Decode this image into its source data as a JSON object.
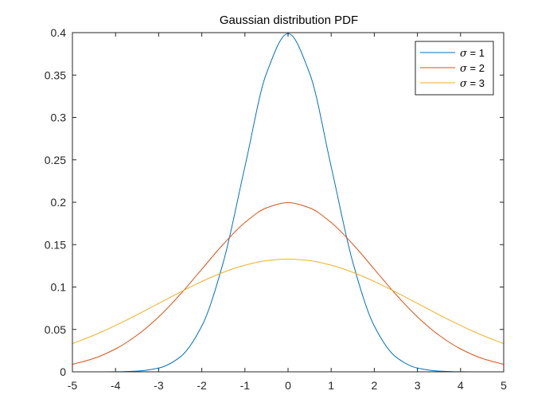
{
  "chart_data": {
    "type": "line",
    "title": "Gaussian distribution PDF",
    "xlabel": "",
    "ylabel": "",
    "xlim": [
      -5,
      5
    ],
    "ylim": [
      0,
      0.4
    ],
    "xticks": [
      -5,
      -4,
      -3,
      -2,
      -1,
      0,
      1,
      2,
      3,
      4,
      5
    ],
    "xtick_labels": [
      "-5",
      "-4",
      "-3",
      "-2",
      "-1",
      "0",
      "1",
      "2",
      "3",
      "4",
      "5"
    ],
    "yticks": [
      0,
      0.05,
      0.1,
      0.15,
      0.2,
      0.25,
      0.3,
      0.35,
      0.4
    ],
    "ytick_labels": [
      "0",
      "0.05",
      "0.1",
      "0.15",
      "0.2",
      "0.25",
      "0.3",
      "0.35",
      "0.4"
    ],
    "grid": false,
    "legend_position": "top-right",
    "x": [
      -5,
      -4.5,
      -4,
      -3.5,
      -3,
      -2.5,
      -2,
      -1.5,
      -1,
      -0.5,
      0,
      0.5,
      1,
      1.5,
      2,
      2.5,
      3,
      3.5,
      4,
      4.5,
      5
    ],
    "series": [
      {
        "name": "σ = 1",
        "legend_symbol": "σ",
        "legend_value": "= 1",
        "color": "#0072BD",
        "values": [
          1.5e-06,
          1.6e-05,
          0.000134,
          0.000873,
          0.00443,
          0.01753,
          0.05399,
          0.12952,
          0.24197,
          0.35207,
          0.39894,
          0.35207,
          0.24197,
          0.12952,
          0.05399,
          0.01753,
          0.00443,
          0.000873,
          0.000134,
          1.6e-05,
          1.5e-06
        ]
      },
      {
        "name": "σ = 2",
        "legend_symbol": "σ",
        "legend_value": "= 2",
        "color": "#D95319",
        "values": [
          0.00876,
          0.01587,
          0.027,
          0.04317,
          0.06476,
          0.09132,
          0.12099,
          0.15057,
          0.17603,
          0.19333,
          0.19947,
          0.19333,
          0.17603,
          0.15057,
          0.12099,
          0.09132,
          0.06476,
          0.04317,
          0.027,
          0.01587,
          0.00876
        ]
      },
      {
        "name": "σ = 3",
        "legend_symbol": "σ",
        "legend_value": "= 3",
        "color": "#EDB120",
        "values": [
          0.03315,
          0.04318,
          0.05467,
          0.06727,
          0.08066,
          0.09397,
          0.10648,
          0.11735,
          0.12579,
          0.13115,
          0.13298,
          0.13115,
          0.12579,
          0.11735,
          0.10648,
          0.09397,
          0.08066,
          0.06727,
          0.05467,
          0.04318,
          0.03315
        ]
      }
    ]
  }
}
